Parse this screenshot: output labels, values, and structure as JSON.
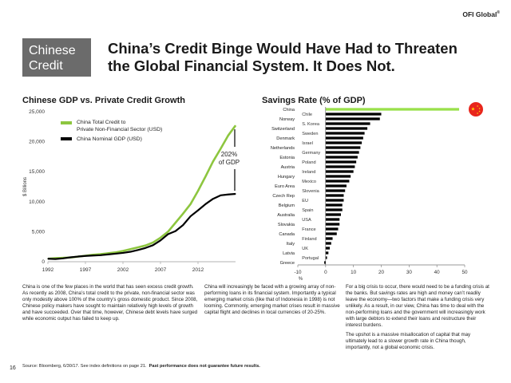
{
  "brand": "OFI Global",
  "brand_mark": "®",
  "section_label": [
    "Chinese",
    "Credit"
  ],
  "headline": [
    "China’s Credit Binge Would Have Had to Threaten",
    "the Global Financial System.  It Does Not."
  ],
  "chart_data": [
    {
      "type": "line",
      "title": "Chinese GDP vs. Private Credit Growth",
      "ylabel": "$ Billions",
      "xlim": [
        1992,
        2017
      ],
      "ylim": [
        0,
        25000
      ],
      "x_ticks": [
        "1992",
        "1997",
        "2002",
        "2007",
        "2012"
      ],
      "y_ticks": [
        "0",
        "5,000",
        "10,000",
        "15,000",
        "20,000",
        "25,000"
      ],
      "annotation": [
        "202%",
        "of GDP"
      ],
      "series": [
        {
          "name": "China Total Credit to Private Non-Financial Sector (USD)",
          "color": "#8dc63f",
          "x": [
            1992,
            1993,
            1994,
            1995,
            1996,
            1997,
            1998,
            1999,
            2000,
            2001,
            2002,
            2003,
            2004,
            2005,
            2006,
            2007,
            2008,
            2009,
            2010,
            2011,
            2012,
            2013,
            2014,
            2015,
            2016,
            2017
          ],
          "values": [
            500,
            600,
            650,
            700,
            850,
            1000,
            1150,
            1250,
            1400,
            1550,
            1800,
            2100,
            2400,
            2700,
            3200,
            4000,
            5000,
            6500,
            8000,
            9600,
            11800,
            14200,
            16700,
            18800,
            21000,
            22700
          ]
        },
        {
          "name": "China Nominal GDP (USD)",
          "color": "#000000",
          "x": [
            1992,
            1993,
            1994,
            1995,
            1996,
            1997,
            1998,
            1999,
            2000,
            2001,
            2002,
            2003,
            2004,
            2005,
            2006,
            2007,
            2008,
            2009,
            2010,
            2011,
            2012,
            2013,
            2014,
            2015,
            2016,
            2017
          ],
          "values": [
            500,
            450,
            560,
            730,
            860,
            960,
            1030,
            1090,
            1210,
            1340,
            1470,
            1660,
            1960,
            2290,
            2750,
            3550,
            4590,
            5100,
            6100,
            7570,
            8560,
            9600,
            10480,
            11060,
            11200,
            11300
          ]
        }
      ]
    },
    {
      "type": "bar",
      "orientation": "horizontal",
      "title": "Savings Rate (% of GDP)",
      "xlabel": "%",
      "xlim": [
        -10,
        50
      ],
      "x_ticks": [
        "-10",
        "0",
        "10",
        "20",
        "30",
        "40",
        "50"
      ],
      "highlight_color": "#99e04a",
      "categories": [
        "China",
        "Chile",
        "Norway",
        "S. Korea",
        "Switzerland",
        "Sweden",
        "Denmark",
        "Israel",
        "Netherlands",
        "Germany",
        "Estonia",
        "Poland",
        "Austria",
        "Ireland",
        "Hungary",
        "Mexico",
        "Euro Area",
        "Slovenia",
        "Czech Rep",
        "EU",
        "Belgium",
        "Spain",
        "Australia",
        "USA",
        "Slovakia",
        "France",
        "Canada",
        "Finland",
        "Italy",
        "UK",
        "Latvia",
        "Portugal",
        "Greece"
      ],
      "values": [
        48,
        20,
        19.5,
        16,
        15,
        14,
        13.5,
        13,
        12.5,
        12,
        11.5,
        11,
        10.5,
        10,
        9,
        8.5,
        7.5,
        7,
        6.5,
        6.5,
        6,
        6,
        5.5,
        5,
        5,
        4.5,
        4,
        2.5,
        2,
        1.5,
        1,
        0.5,
        -0.5
      ]
    }
  ],
  "body_text": {
    "col1": "China is one of the few places in the world that has seen excess credit growth. As recently as 2008, China’s total credit to the private, non-financial sector was only modestly above 100% of the country’s gross domestic product. Since 2008, Chinese policy makers have sought to maintain relatively high levels of growth and have succeeded. Over that time, however, Chinese debt levels have surged while economic output has failed to keep up.",
    "col2": "China will increasingly be faced with a growing array of non-performing loans in its financial system. Importantly a typical emerging market crisis (like that of Indonesia in 1998) is not looming. Commonly, emerging market crises result in massive capital flight and declines in local currencies of 20-25%.",
    "col3a": "For a big crisis to occur, there would need to be a funding crisis at the banks. But savings rates are high and money can’t readily leave the economy—two factors that make a funding crisis very unlikely. As a result, in our view, China has time to deal with the non-performing loans and the government will increasingly work with large debtors to extend their loans and restructure their interest burdens.",
    "col3b": "The upshot is a massive misallocation of capital that may ultimately lead to a slower growth rate in China though, importantly, not a global economic crisis."
  },
  "source_text": "Source: Bloomberg, 6/30/17. See index definitions on page 21.",
  "disclaimer": "Past performance does not guarantee future results.",
  "page_number": "16"
}
